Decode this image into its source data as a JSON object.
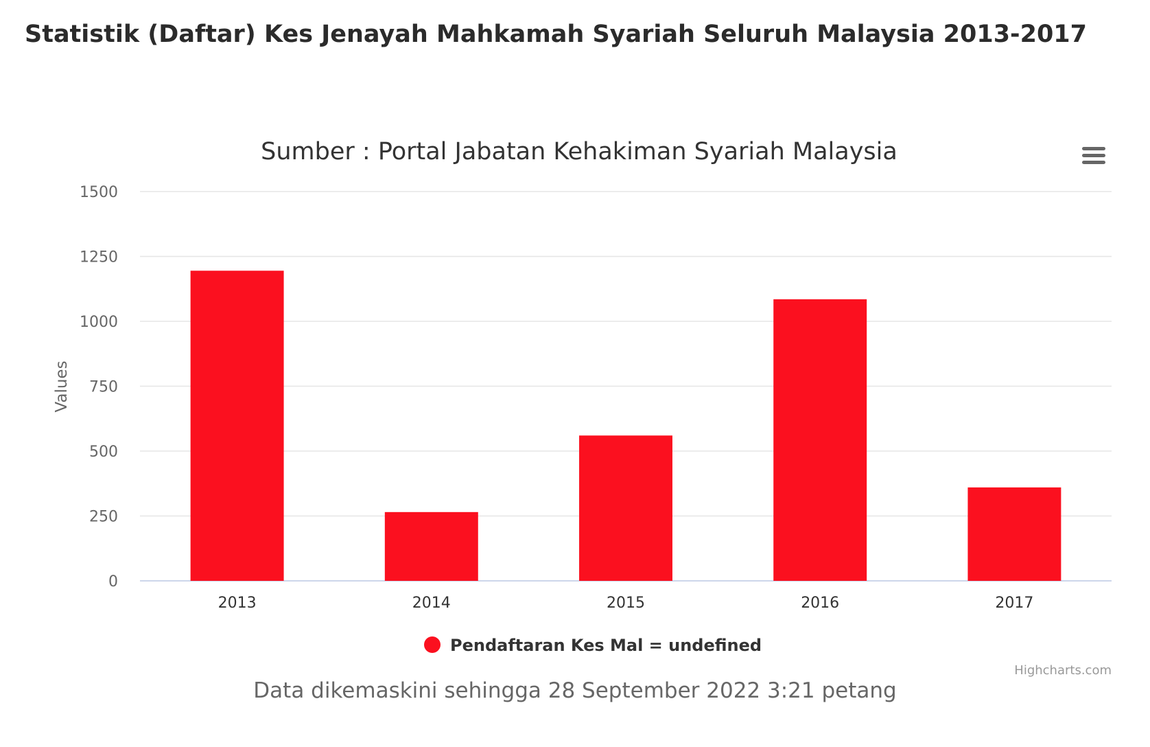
{
  "page": {
    "title": "Statistik (Daftar) Kes Jenayah Mahkamah Syariah Seluruh Malaysia 2013-2017",
    "footer_note": "Data dikemaskini sehingga 28 September 2022 3:21 petang"
  },
  "chart": {
    "menu_icon": "hamburger-menu-icon",
    "credits": "Highcharts.com"
  },
  "chart_data": {
    "type": "bar",
    "title": "Sumber : Portal Jabatan Kehakiman Syariah Malaysia",
    "xlabel": "",
    "ylabel": "Values",
    "categories": [
      "2013",
      "2014",
      "2015",
      "2016",
      "2017"
    ],
    "series": [
      {
        "name": "Pendaftaran Kes Mal = undefined",
        "color": "#fb101f",
        "values": [
          1195,
          265,
          560,
          1085,
          360
        ]
      }
    ],
    "ylim": [
      0,
      1500
    ],
    "yticks": [
      "0",
      "250",
      "500",
      "750",
      "1000",
      "1250",
      "1500"
    ],
    "grid": true,
    "legend": "bottom-center"
  }
}
